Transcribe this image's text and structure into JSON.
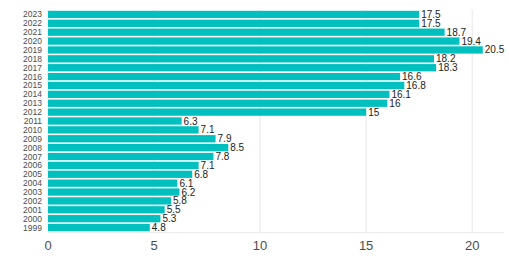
{
  "chart_data": {
    "type": "bar",
    "orientation": "horizontal",
    "categories": [
      "1999",
      "2000",
      "2001",
      "2002",
      "2003",
      "2004",
      "2005",
      "2006",
      "2007",
      "2008",
      "2009",
      "2010",
      "2011",
      "2012",
      "2013",
      "2014",
      "2015",
      "2016",
      "2017",
      "2018",
      "2019",
      "2020",
      "2021",
      "2022",
      "2023"
    ],
    "values": [
      4.8,
      5.3,
      5.5,
      5.8,
      6.2,
      6.1,
      6.8,
      7.1,
      7.8,
      8.5,
      7.9,
      7.1,
      6.3,
      15,
      16,
      16.1,
      16.8,
      16.6,
      18.3,
      18.2,
      20.5,
      19.4,
      18.7,
      17.5,
      17.5
    ],
    "color": "#00bfbf",
    "xlim": [
      0,
      21.5
    ],
    "xticks": [
      0,
      5,
      10,
      15,
      20
    ],
    "grid": true,
    "data_labels": true
  }
}
